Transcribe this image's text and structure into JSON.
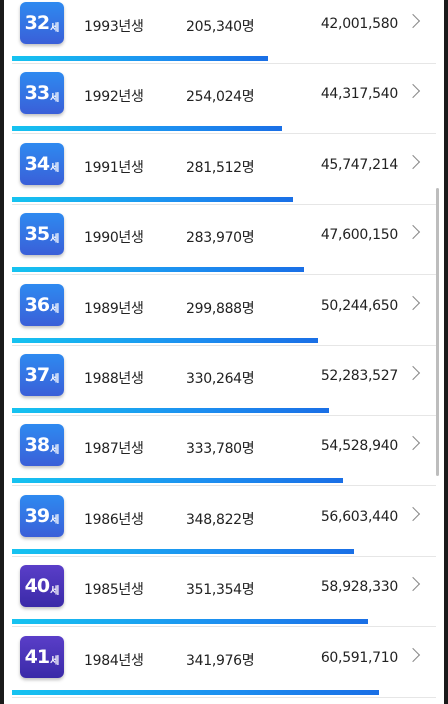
{
  "unit_label": "세",
  "colors": {
    "badge_blue_top": "#2e8af0",
    "badge_blue_bottom": "#3a5fd8",
    "badge_purple_top": "#5a3ec8",
    "badge_purple_bottom": "#3a2aa8",
    "bar": "#1d8ef0"
  },
  "rows": [
    {
      "age": "32",
      "year": "1993년생",
      "count": "205,340명",
      "amount": "42,001,580",
      "bar_ratio": 0.71,
      "badge": "blue"
    },
    {
      "age": "33",
      "year": "1992년생",
      "count": "254,024명",
      "amount": "44,317,540",
      "bar_ratio": 0.75,
      "badge": "blue"
    },
    {
      "age": "34",
      "year": "1991년생",
      "count": "281,512명",
      "amount": "45,747,214",
      "bar_ratio": 0.78,
      "badge": "blue"
    },
    {
      "age": "35",
      "year": "1990년생",
      "count": "283,970명",
      "amount": "47,600,150",
      "bar_ratio": 0.81,
      "badge": "blue"
    },
    {
      "age": "36",
      "year": "1989년생",
      "count": "299,888명",
      "amount": "50,244,650",
      "bar_ratio": 0.85,
      "badge": "blue"
    },
    {
      "age": "37",
      "year": "1988년생",
      "count": "330,264명",
      "amount": "52,283,527",
      "bar_ratio": 0.88,
      "badge": "blue"
    },
    {
      "age": "38",
      "year": "1987년생",
      "count": "333,780명",
      "amount": "54,528,940",
      "bar_ratio": 0.92,
      "badge": "blue"
    },
    {
      "age": "39",
      "year": "1986년생",
      "count": "348,822명",
      "amount": "56,603,440",
      "bar_ratio": 0.95,
      "badge": "blue"
    },
    {
      "age": "40",
      "year": "1985년생",
      "count": "351,354명",
      "amount": "58,928,330",
      "bar_ratio": 0.99,
      "badge": "purple"
    },
    {
      "age": "41",
      "year": "1984년생",
      "count": "341,976명",
      "amount": "60,591,710",
      "bar_ratio": 1.02,
      "badge": "purple"
    }
  ]
}
